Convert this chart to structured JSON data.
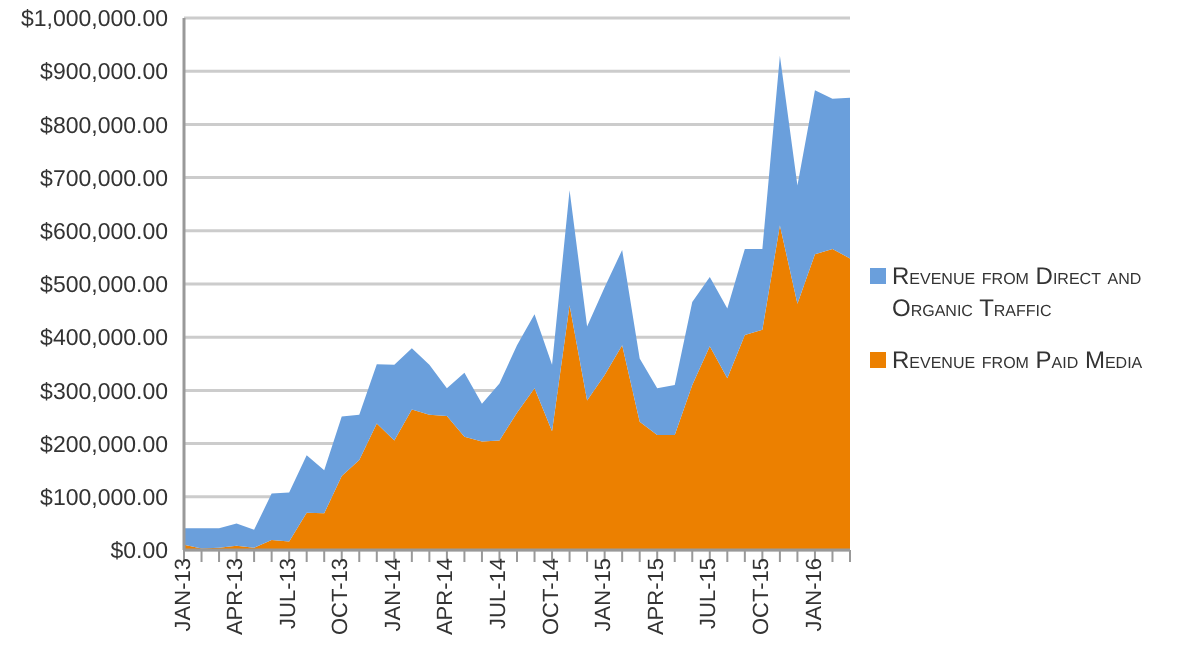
{
  "chart_data": {
    "type": "area",
    "stacked": true,
    "categories": [
      "JAN-13",
      null,
      null,
      "APR-13",
      null,
      null,
      "JUL-13",
      null,
      null,
      "OCT-13",
      null,
      null,
      "JAN-14",
      null,
      null,
      "APR-14",
      null,
      null,
      "JUL-14",
      null,
      null,
      "OCT-14",
      null,
      null,
      "JAN-15",
      null,
      null,
      "APR-15",
      null,
      null,
      "JUL-15",
      null,
      null,
      "OCT-15",
      null,
      null,
      "JAN-16",
      null,
      null
    ],
    "series": [
      {
        "name": "Revenue from Paid Media",
        "color": "#ec8000",
        "values": [
          10000,
          3000,
          4000,
          8000,
          4000,
          19000,
          16000,
          70000,
          69000,
          139000,
          169000,
          238000,
          206000,
          264000,
          254000,
          252000,
          213000,
          204000,
          206000,
          258000,
          304000,
          223000,
          460000,
          281000,
          329000,
          385000,
          241000,
          216000,
          216000,
          310000,
          383000,
          323000,
          404000,
          414000,
          610000,
          463000,
          556000,
          566000,
          548000
        ]
      },
      {
        "name": "Revenue from Direct and Organic Traffic",
        "color": "#6a9fdc",
        "values": [
          31000,
          38000,
          37000,
          42000,
          34000,
          87000,
          92000,
          108000,
          81000,
          112000,
          85000,
          111000,
          142000,
          115000,
          94000,
          52000,
          120000,
          71000,
          107000,
          127000,
          139000,
          125000,
          216000,
          139000,
          165000,
          179000,
          119000,
          88000,
          94000,
          156000,
          130000,
          131000,
          162000,
          152000,
          319000,
          222000,
          308000,
          282000,
          302000
        ]
      }
    ],
    "ylim": [
      0,
      1000000
    ],
    "yticks": [
      {
        "value": 0,
        "label": "$0.00"
      },
      {
        "value": 100000,
        "label": "$100,000.00"
      },
      {
        "value": 200000,
        "label": "$200,000.00"
      },
      {
        "value": 300000,
        "label": "$300,000.00"
      },
      {
        "value": 400000,
        "label": "$400,000.00"
      },
      {
        "value": 500000,
        "label": "$500,000.00"
      },
      {
        "value": 600000,
        "label": "$600,000.00"
      },
      {
        "value": 700000,
        "label": "$700,000.00"
      },
      {
        "value": 800000,
        "label": "$800,000.00"
      },
      {
        "value": 900000,
        "label": "$900,000.00"
      },
      {
        "value": 1000000,
        "label": "$1,000,000.00"
      }
    ],
    "grid": "y",
    "legend": "right"
  }
}
